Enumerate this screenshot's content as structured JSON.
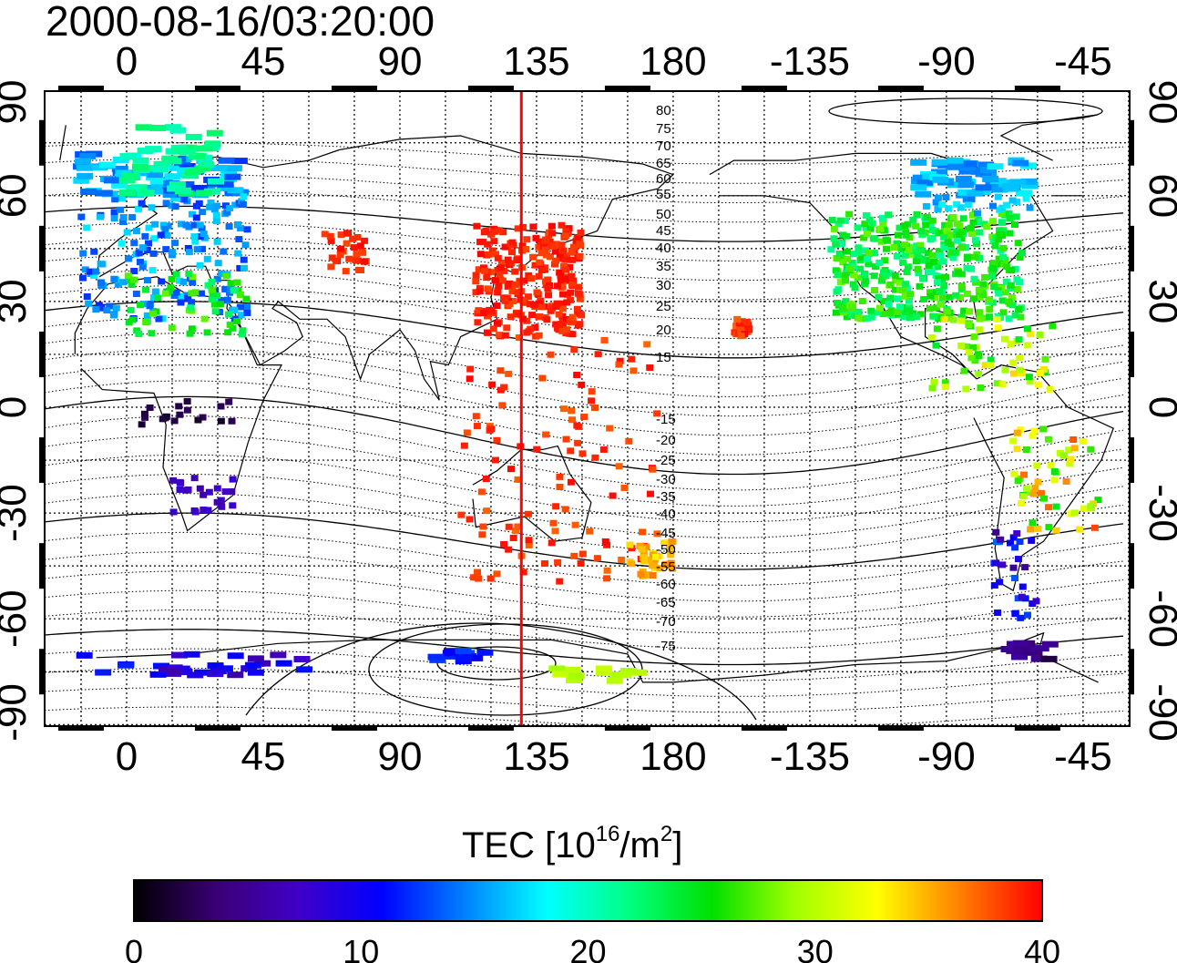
{
  "title": "2000-08-16/03:20:00",
  "map": {
    "top_longitude_labels": [
      "0",
      "45",
      "90",
      "135",
      "180",
      "-135",
      "-90",
      "-45"
    ],
    "bottom_longitude_labels": [
      "0",
      "45",
      "90",
      "135",
      "180",
      "-135",
      "-90",
      "-45"
    ],
    "left_latitude_labels": [
      "90",
      "60",
      "30",
      "0",
      "-30",
      "-60",
      "-90"
    ],
    "right_latitude_labels": [
      "90",
      "60",
      "30",
      "0",
      "-30",
      "-60",
      "-90"
    ],
    "contour_labels_north": [
      "80",
      "75",
      "70",
      "65",
      "60",
      "55",
      "50",
      "45",
      "40",
      "35",
      "30",
      "25",
      "20",
      "15"
    ],
    "contour_labels_south": [
      "-15",
      "-20",
      "-25",
      "-30",
      "-35",
      "-40",
      "-45",
      "-50",
      "-55",
      "-60",
      "-65",
      "-70",
      "-75"
    ],
    "meridian_marker_longitude": 130,
    "colors": {
      "marker_line": "#ff0000",
      "frame": "#000000"
    }
  },
  "colorbar": {
    "title_text": "TEC  [10",
    "title_exp": "16",
    "title_unit": "/m",
    "title_unit_exp": "2",
    "title_close": "]",
    "min": 0,
    "max": 40,
    "tick_labels": [
      "0",
      "10",
      "20",
      "30",
      "40"
    ],
    "colormap": [
      "#000000",
      "#3a0075",
      "#4000c8",
      "#0000ff",
      "#0080ff",
      "#00ffff",
      "#00ff80",
      "#00e000",
      "#a0ff00",
      "#ffff00",
      "#ff8000",
      "#ff0000"
    ]
  }
}
